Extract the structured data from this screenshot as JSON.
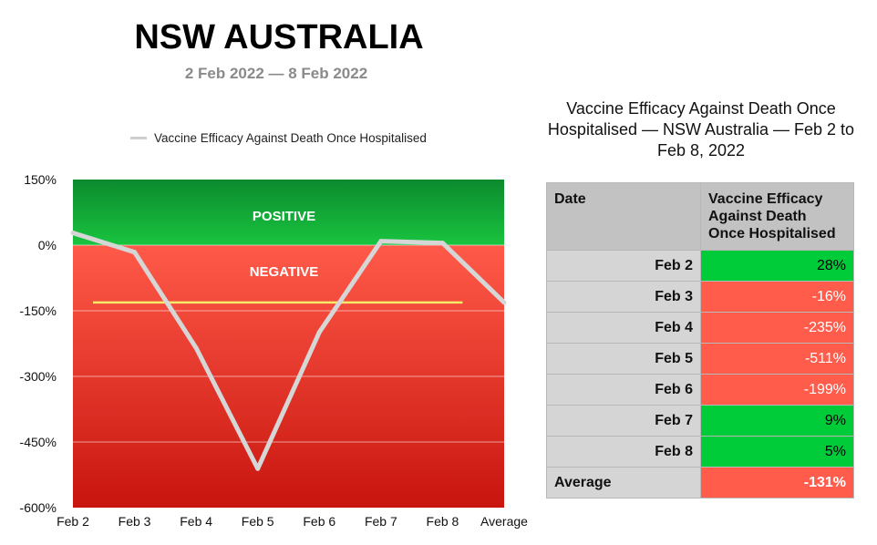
{
  "header": {
    "title": "NSW AUSTRALIA",
    "subtitle": "2 Feb 2022 — 8 Feb 2022"
  },
  "chart_data": {
    "type": "line",
    "legend": {
      "entries": [
        "Vaccine Efficacy Against Death Once Hospitalised"
      ],
      "placement": "top-left"
    },
    "categories": [
      "Feb 2",
      "Feb 3",
      "Feb 4",
      "Feb 5",
      "Feb 6",
      "Feb 7",
      "Feb 8",
      "Average"
    ],
    "series": [
      {
        "name": "Vaccine Efficacy Against Death Once Hospitalised",
        "values": [
          28,
          -16,
          -235,
          -511,
          -199,
          9,
          5,
          -131
        ],
        "color": "#d6d6d6"
      }
    ],
    "average_line": {
      "value": -131,
      "from": "Feb 2",
      "to": "Feb 8",
      "color": "#f3ea6a"
    },
    "ylim": [
      -600,
      150
    ],
    "yticks": [
      150,
      0,
      -150,
      -300,
      -450,
      -600
    ],
    "ytick_labels": [
      "150%",
      "0%",
      "-150%",
      "-300%",
      "-450%",
      "-600%"
    ],
    "bands": {
      "positive": {
        "label": "POSITIVE",
        "colors": [
          "#0c8a2e",
          "#19c43f"
        ]
      },
      "negative": {
        "label": "NEGATIVE",
        "colors": [
          "#ff5a49",
          "#c8150e"
        ]
      }
    },
    "grid": true,
    "xlabel": "",
    "ylabel": ""
  },
  "table": {
    "title": "Vaccine Efficacy Against Death Once Hospitalised — NSW Australia — Feb 2 to Feb 8, 2022",
    "headers": [
      "Date",
      "Vaccine Efficacy Against Death Once Hospitalised"
    ],
    "rows": [
      {
        "date": "Feb 2",
        "value": "28%",
        "sign": "positive"
      },
      {
        "date": "Feb 3",
        "value": "-16%",
        "sign": "negative"
      },
      {
        "date": "Feb 4",
        "value": "-235%",
        "sign": "negative"
      },
      {
        "date": "Feb 5",
        "value": "-511%",
        "sign": "negative"
      },
      {
        "date": "Feb 6",
        "value": "-199%",
        "sign": "negative"
      },
      {
        "date": "Feb 7",
        "value": "9%",
        "sign": "positive"
      },
      {
        "date": "Feb 8",
        "value": "5%",
        "sign": "positive"
      }
    ],
    "average": {
      "date": "Average",
      "value": "-131%",
      "sign": "negative"
    }
  }
}
